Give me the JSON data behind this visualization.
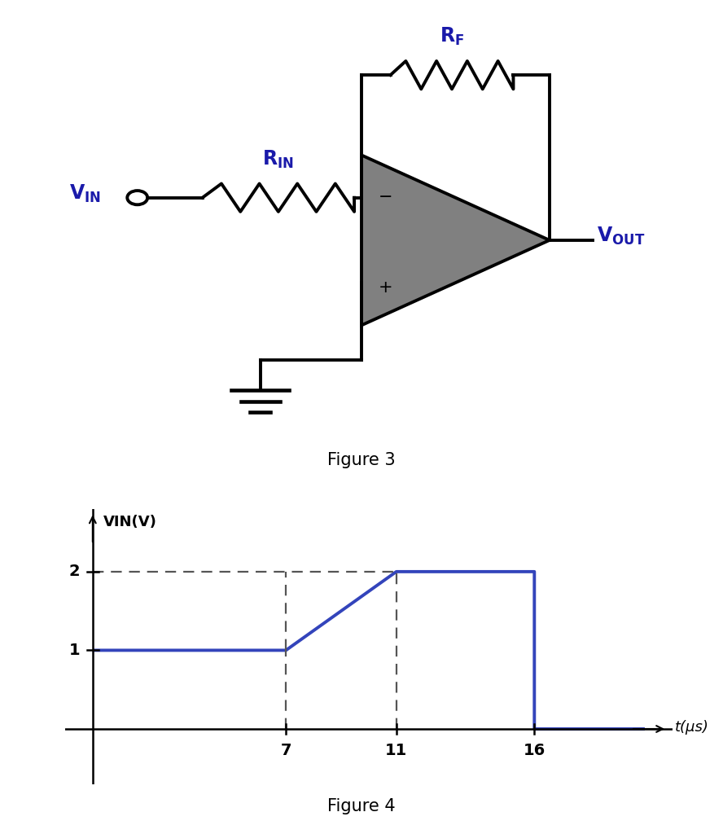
{
  "fig3_caption": "Figure 3",
  "fig4_caption": "Figure 4",
  "graph_xlabel": "t(μs)",
  "graph_ylabel": "VIN(V)",
  "signal_color": "#3344bb",
  "dashed_color": "#555555",
  "circuit_color": "#000000",
  "label_color": "#1a1aaa",
  "opamp_fill": "#808080",
  "t_points": [
    0,
    7,
    11,
    16,
    16,
    20
  ],
  "v_points": [
    1,
    1,
    2,
    2,
    0,
    0
  ],
  "tick_t": [
    7,
    11,
    16
  ],
  "tick_v": [
    1,
    2
  ],
  "xlim": [
    -1.0,
    21
  ],
  "ylim": [
    -0.7,
    2.8
  ],
  "dashed_lines_t": [
    7,
    11
  ],
  "dashed_line_v2": 2.0
}
